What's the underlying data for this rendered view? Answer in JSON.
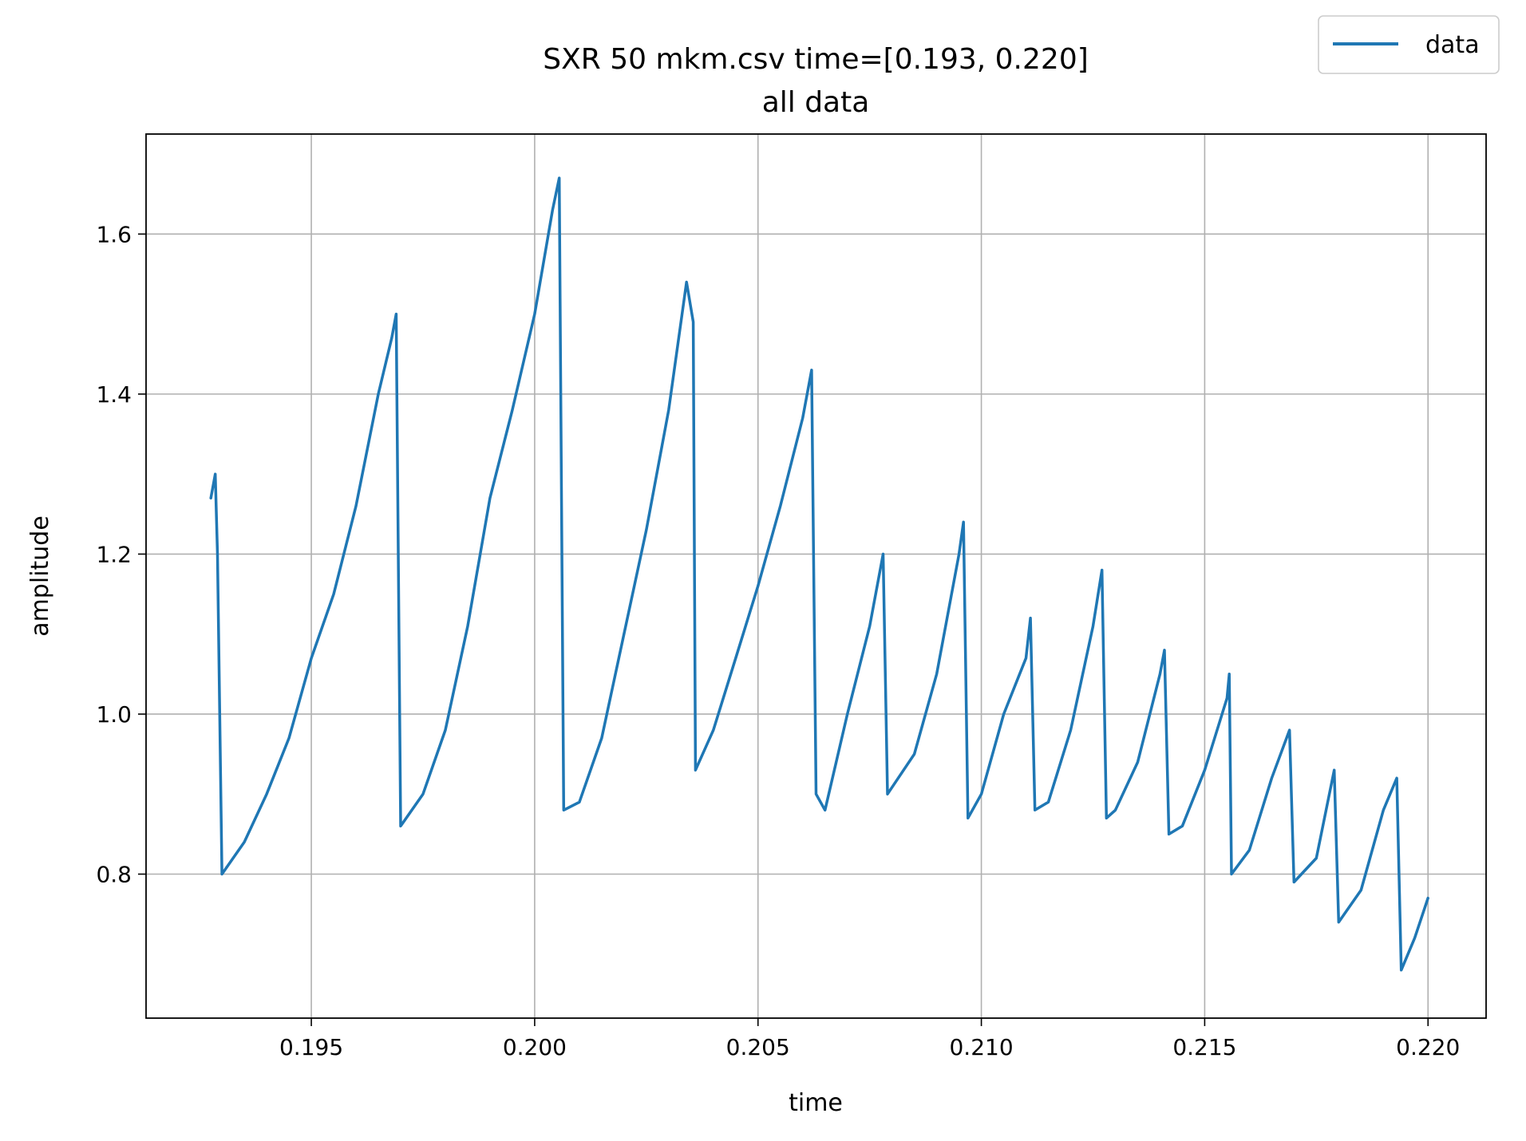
{
  "chart_data": {
    "type": "line",
    "title": "SXR 50 mkm.csv time=[0.193, 0.220]",
    "subtitle": "all data",
    "xlabel": "time",
    "ylabel": "amplitude",
    "xlim": [
      0.1913,
      0.2213
    ],
    "ylim": [
      0.62,
      1.725
    ],
    "xticks": [
      0.195,
      0.2,
      0.205,
      0.21,
      0.215,
      0.22
    ],
    "xtick_labels": [
      "0.195",
      "0.200",
      "0.205",
      "0.210",
      "0.215",
      "0.220"
    ],
    "yticks": [
      0.8,
      1.0,
      1.2,
      1.4,
      1.6
    ],
    "ytick_labels": [
      "0.8",
      "1.0",
      "1.2",
      "1.4",
      "1.6"
    ],
    "grid": true,
    "legend_position": "top-right",
    "series_color": "#1f77b4",
    "series": [
      {
        "name": "data",
        "points": [
          [
            0.19275,
            1.27
          ],
          [
            0.19285,
            1.3
          ],
          [
            0.1929,
            1.2
          ],
          [
            0.193,
            0.8
          ],
          [
            0.1935,
            0.84
          ],
          [
            0.194,
            0.9
          ],
          [
            0.1945,
            0.97
          ],
          [
            0.195,
            1.07
          ],
          [
            0.1955,
            1.15
          ],
          [
            0.196,
            1.26
          ],
          [
            0.1965,
            1.4
          ],
          [
            0.1968,
            1.47
          ],
          [
            0.1969,
            1.5
          ],
          [
            0.197,
            0.86
          ],
          [
            0.1975,
            0.9
          ],
          [
            0.198,
            0.98
          ],
          [
            0.1985,
            1.11
          ],
          [
            0.199,
            1.27
          ],
          [
            0.1995,
            1.38
          ],
          [
            0.2,
            1.5
          ],
          [
            0.2004,
            1.63
          ],
          [
            0.20055,
            1.67
          ],
          [
            0.20065,
            0.88
          ],
          [
            0.201,
            0.89
          ],
          [
            0.2015,
            0.97
          ],
          [
            0.202,
            1.1
          ],
          [
            0.2025,
            1.23
          ],
          [
            0.203,
            1.38
          ],
          [
            0.2034,
            1.54
          ],
          [
            0.20355,
            1.49
          ],
          [
            0.2036,
            0.93
          ],
          [
            0.204,
            0.98
          ],
          [
            0.2045,
            1.07
          ],
          [
            0.205,
            1.16
          ],
          [
            0.2055,
            1.26
          ],
          [
            0.206,
            1.37
          ],
          [
            0.2062,
            1.43
          ],
          [
            0.2063,
            0.9
          ],
          [
            0.2065,
            0.88
          ],
          [
            0.207,
            1.0
          ],
          [
            0.2075,
            1.11
          ],
          [
            0.2078,
            1.2
          ],
          [
            0.2079,
            0.9
          ],
          [
            0.2085,
            0.95
          ],
          [
            0.209,
            1.05
          ],
          [
            0.2095,
            1.2
          ],
          [
            0.2096,
            1.24
          ],
          [
            0.2097,
            0.87
          ],
          [
            0.21,
            0.9
          ],
          [
            0.2105,
            1.0
          ],
          [
            0.211,
            1.07
          ],
          [
            0.2111,
            1.12
          ],
          [
            0.2112,
            0.88
          ],
          [
            0.2115,
            0.89
          ],
          [
            0.212,
            0.98
          ],
          [
            0.2125,
            1.11
          ],
          [
            0.2127,
            1.18
          ],
          [
            0.2128,
            0.87
          ],
          [
            0.213,
            0.88
          ],
          [
            0.2135,
            0.94
          ],
          [
            0.214,
            1.05
          ],
          [
            0.2141,
            1.08
          ],
          [
            0.2142,
            0.85
          ],
          [
            0.2145,
            0.86
          ],
          [
            0.215,
            0.93
          ],
          [
            0.2155,
            1.02
          ],
          [
            0.21555,
            1.05
          ],
          [
            0.2156,
            0.8
          ],
          [
            0.216,
            0.83
          ],
          [
            0.2165,
            0.92
          ],
          [
            0.2169,
            0.98
          ],
          [
            0.217,
            0.79
          ],
          [
            0.2175,
            0.82
          ],
          [
            0.2179,
            0.93
          ],
          [
            0.218,
            0.74
          ],
          [
            0.2185,
            0.78
          ],
          [
            0.219,
            0.88
          ],
          [
            0.2193,
            0.92
          ],
          [
            0.2194,
            0.68
          ],
          [
            0.2197,
            0.72
          ],
          [
            0.22,
            0.77
          ]
        ]
      }
    ]
  }
}
